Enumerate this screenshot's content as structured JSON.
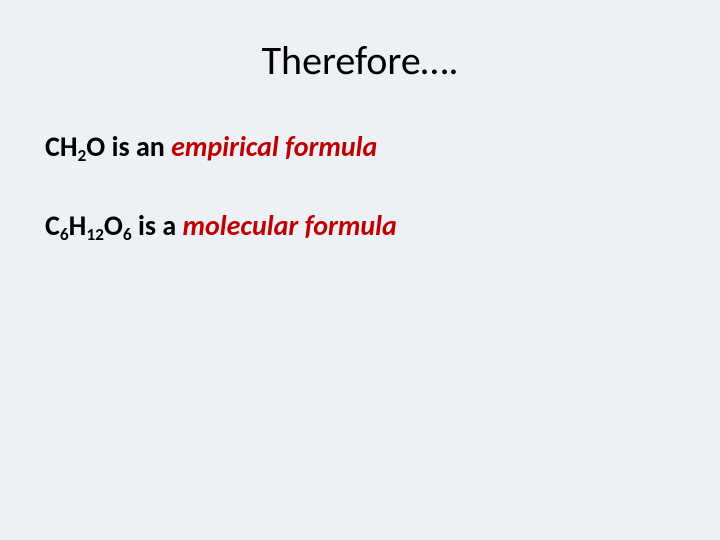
{
  "slide": {
    "background_color": "#edf1f6",
    "title": {
      "text": "Therefore….",
      "fontsize": 40,
      "color": "#000000",
      "align": "center"
    },
    "lines": [
      {
        "formula": {
          "base": "CH",
          "sub1": "2",
          "tail": "O"
        },
        "middle": " is an ",
        "highlight": "empirical formula",
        "highlight_color": "#c00000",
        "highlight_italic": true,
        "fontsize": 28,
        "weight": 700
      },
      {
        "formula": {
          "p1": "C",
          "s1": "6",
          "p2": "H",
          "s2": "12",
          "p3": "O",
          "s3": "6"
        },
        "middle": " is a ",
        "highlight": "molecular formula",
        "highlight_color": "#c00000",
        "highlight_italic": true,
        "fontsize": 28,
        "weight": 700
      }
    ]
  }
}
